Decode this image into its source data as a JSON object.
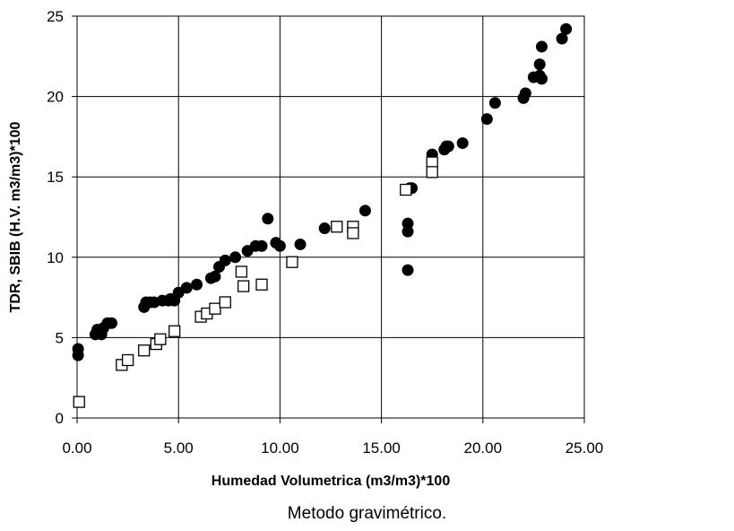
{
  "chart_data": {
    "type": "scatter",
    "xlabel": "Humedad Volumetrica (m3/m3)*100",
    "ylabel": "TDR, SBIB (H.V. m3/m3)*100",
    "xlim": [
      0,
      25
    ],
    "ylim": [
      0,
      25
    ],
    "x_ticks": [
      "0.00",
      "5.00",
      "10.00",
      "15.00",
      "20.00",
      "25.00"
    ],
    "y_ticks": [
      "0",
      "5",
      "10",
      "15",
      "20",
      "25"
    ],
    "grid": true,
    "series": [
      {
        "marker": "filled-circle",
        "color": "#000000",
        "points": [
          [
            0.05,
            4.3
          ],
          [
            0.05,
            3.9
          ],
          [
            0.9,
            5.2
          ],
          [
            1.0,
            5.5
          ],
          [
            1.2,
            5.2
          ],
          [
            1.3,
            5.6
          ],
          [
            1.5,
            5.9
          ],
          [
            1.7,
            5.9
          ],
          [
            3.3,
            6.9
          ],
          [
            3.4,
            7.2
          ],
          [
            3.6,
            7.2
          ],
          [
            3.8,
            7.2
          ],
          [
            4.2,
            7.3
          ],
          [
            4.5,
            7.3
          ],
          [
            4.6,
            7.4
          ],
          [
            4.8,
            7.3
          ],
          [
            5.0,
            7.8
          ],
          [
            5.4,
            8.1
          ],
          [
            5.9,
            8.3
          ],
          [
            6.6,
            8.7
          ],
          [
            6.8,
            8.8
          ],
          [
            7.0,
            9.4
          ],
          [
            7.3,
            9.8
          ],
          [
            7.8,
            10.0
          ],
          [
            8.4,
            10.4
          ],
          [
            8.8,
            10.7
          ],
          [
            9.1,
            10.7
          ],
          [
            9.4,
            12.4
          ],
          [
            9.8,
            10.9
          ],
          [
            10.0,
            10.7
          ],
          [
            11.0,
            10.8
          ],
          [
            12.2,
            11.8
          ],
          [
            14.2,
            12.9
          ],
          [
            16.3,
            12.1
          ],
          [
            16.3,
            11.6
          ],
          [
            16.3,
            9.2
          ],
          [
            16.4,
            14.3
          ],
          [
            16.5,
            14.3
          ],
          [
            17.5,
            16.4
          ],
          [
            18.1,
            16.7
          ],
          [
            18.2,
            16.9
          ],
          [
            18.3,
            16.9
          ],
          [
            19.0,
            17.1
          ],
          [
            20.2,
            18.6
          ],
          [
            20.6,
            19.6
          ],
          [
            22.0,
            19.9
          ],
          [
            22.1,
            20.2
          ],
          [
            22.5,
            21.2
          ],
          [
            22.8,
            21.3
          ],
          [
            22.8,
            22.0
          ],
          [
            22.9,
            21.1
          ],
          [
            22.9,
            23.1
          ],
          [
            23.9,
            23.6
          ],
          [
            24.1,
            24.2
          ]
        ]
      },
      {
        "marker": "open-square",
        "color": "#000000",
        "points": [
          [
            0.1,
            1.0
          ],
          [
            2.2,
            3.3
          ],
          [
            2.5,
            3.6
          ],
          [
            3.3,
            4.2
          ],
          [
            3.9,
            4.6
          ],
          [
            4.1,
            4.9
          ],
          [
            4.8,
            5.4
          ],
          [
            6.1,
            6.3
          ],
          [
            6.4,
            6.5
          ],
          [
            6.8,
            6.8
          ],
          [
            7.3,
            7.2
          ],
          [
            8.1,
            9.1
          ],
          [
            8.2,
            8.2
          ],
          [
            9.1,
            8.3
          ],
          [
            10.6,
            9.7
          ],
          [
            12.8,
            11.9
          ],
          [
            13.6,
            11.9
          ],
          [
            13.6,
            11.5
          ],
          [
            16.2,
            14.2
          ],
          [
            17.5,
            15.9
          ],
          [
            17.5,
            15.3
          ]
        ]
      }
    ]
  },
  "caption": "Metodo gravimétrico."
}
